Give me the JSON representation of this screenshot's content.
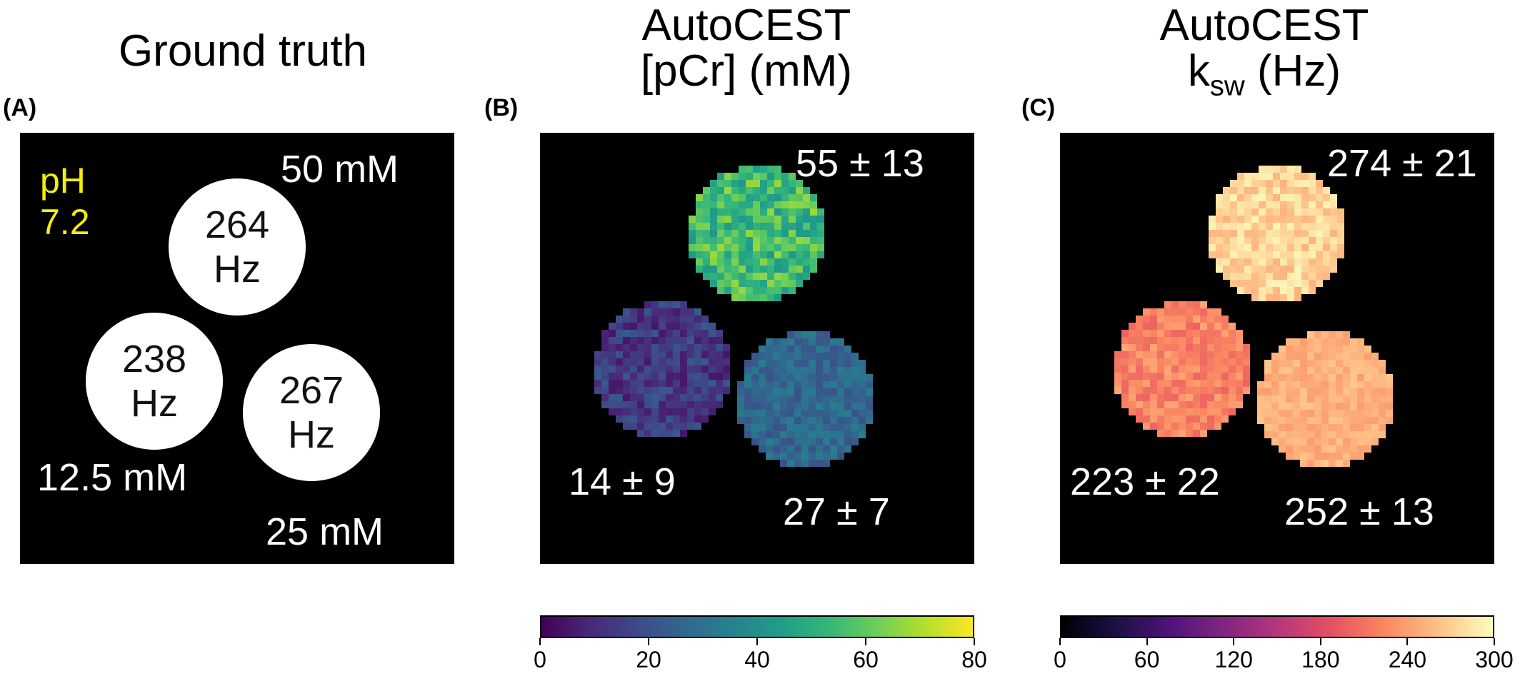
{
  "titles": {
    "a": "Ground truth",
    "b_line1": "AutoCEST",
    "b_line2": "[pCr] (mM)",
    "c_line1": "AutoCEST",
    "c_line2_main": "k",
    "c_line2_sub": "sw",
    "c_line2_rest": " (Hz)"
  },
  "panel_labels": {
    "a": "(A)",
    "b": "(B)",
    "c": "(C)"
  },
  "panel_a": {
    "ph_line1": "pH",
    "ph_line2": "7.2",
    "phantoms": [
      {
        "rate": "264",
        "unit": "Hz",
        "concentration": "50 mM"
      },
      {
        "rate": "238",
        "unit": "Hz",
        "concentration": "12.5 mM"
      },
      {
        "rate": "267",
        "unit": "Hz",
        "concentration": "25 mM"
      }
    ]
  },
  "panel_b": {
    "values": [
      "55 ± 13",
      "14 ± 9",
      "27 ± 7"
    ],
    "means": [
      55,
      14,
      27
    ],
    "colormap": "viridis"
  },
  "panel_c": {
    "values": [
      "274 ± 21",
      "223 ± 22",
      "252 ± 13"
    ],
    "means": [
      274,
      223,
      252
    ],
    "colormap": "magma"
  },
  "colorbar_b": {
    "ticks": [
      "0",
      "20",
      "40",
      "60",
      "80"
    ],
    "range": [
      0,
      80
    ]
  },
  "colorbar_c": {
    "ticks": [
      "0",
      "60",
      "120",
      "180",
      "240",
      "300"
    ],
    "range": [
      0,
      300
    ]
  },
  "colors": {
    "ph_text": "#f2ee0c",
    "background_panel": "#000000"
  }
}
